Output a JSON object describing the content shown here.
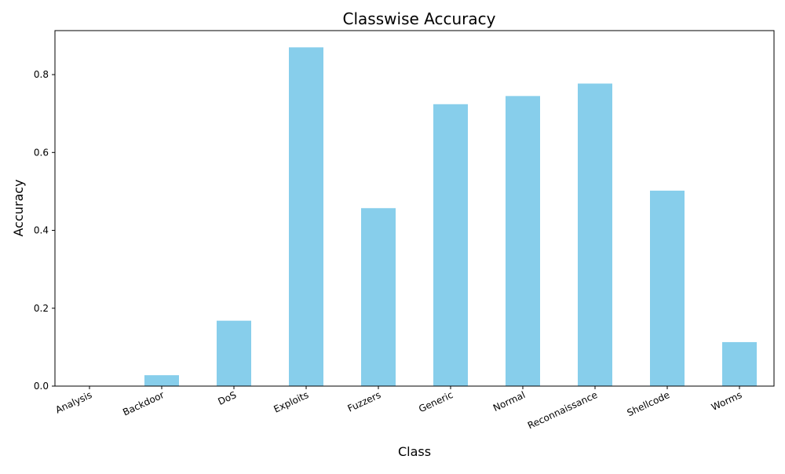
{
  "chart_data": {
    "type": "bar",
    "title": "Classwise Accuracy",
    "xlabel": "Class",
    "ylabel": "Accuracy",
    "categories": [
      "Analysis",
      "Backdoor",
      "DoS",
      "Exploits",
      "Fuzzers",
      "Generic",
      "Normal",
      "Reconnaissance",
      "Shellcode",
      "Worms"
    ],
    "values": [
      0.0,
      0.028,
      0.168,
      0.87,
      0.457,
      0.724,
      0.745,
      0.777,
      0.502,
      0.113
    ],
    "ylim": [
      0,
      0.913
    ],
    "yticks": [
      0.0,
      0.2,
      0.4,
      0.6,
      0.8
    ],
    "ytick_labels": [
      "0.0",
      "0.2",
      "0.4",
      "0.6",
      "0.8"
    ],
    "bar_color": "#87ceeb",
    "grid": false,
    "legend": "none",
    "xtick_rotation": "rotated ~25 degrees, right-aligned"
  }
}
